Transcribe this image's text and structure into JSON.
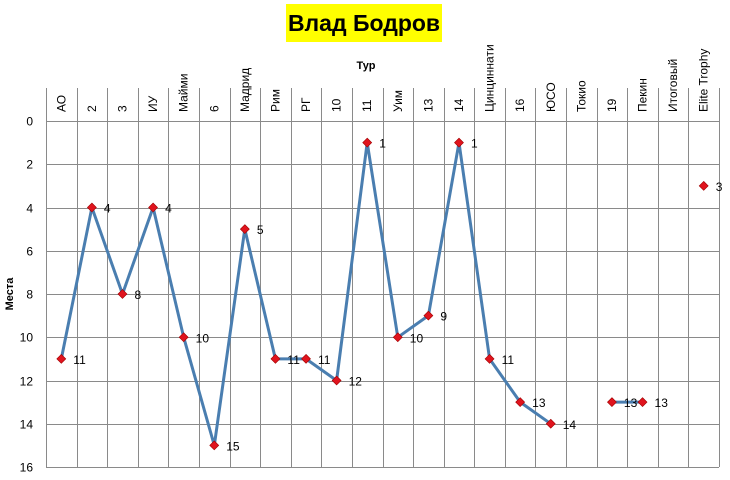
{
  "chart_data": {
    "type": "line",
    "title": "Влад Бодров",
    "xlabel": "Тур",
    "ylabel": "Места",
    "categories": [
      "АО",
      "2",
      "3",
      "ИУ",
      "Майми",
      "6",
      "Мадрид",
      "Рим",
      "РГ",
      "10",
      "11",
      "Уим",
      "13",
      "14",
      "Цинциннати",
      "16",
      "ЮСО",
      "Токио",
      "19",
      "Пекин",
      "Итоговый",
      "Elite Trophy"
    ],
    "series": [
      {
        "values": [
          11,
          4,
          8,
          4,
          10,
          15,
          5,
          11,
          11,
          12,
          1,
          10,
          9,
          1,
          11,
          13,
          14,
          null,
          13,
          13,
          null,
          3
        ],
        "line_color": "#4a7eb0",
        "marker_color": "#e0141e"
      }
    ],
    "ylim": [
      0,
      16
    ],
    "y_inverted": true,
    "y_ticks": [
      0,
      2,
      4,
      6,
      8,
      10,
      12,
      14,
      16
    ],
    "x_axis_position": "top",
    "grid": true,
    "legend": "none"
  }
}
